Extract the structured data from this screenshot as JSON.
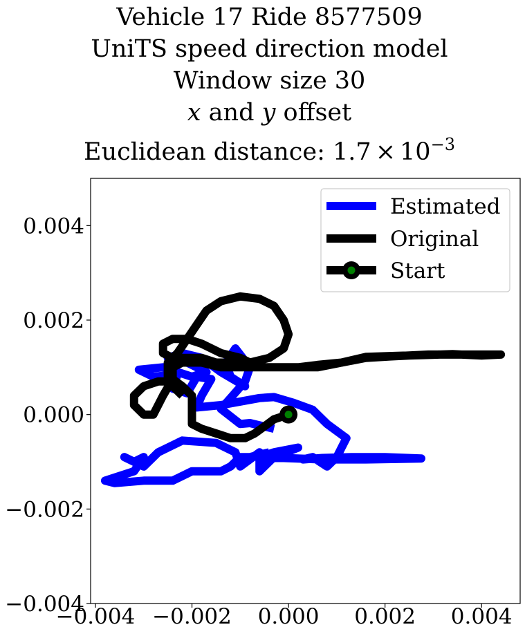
{
  "chart_data": {
    "type": "line",
    "title_lines": [
      "Vehicle 17 Ride 8577509",
      "UniTS speed direction model",
      "Window size 30",
      "x and y offset",
      "Euclidean distance: 1.7×10⁻³"
    ],
    "title": {
      "line1": "Vehicle 17 Ride 8577509",
      "line2": "UniTS speed direction model",
      "line3": "Window size 30",
      "line4_var1": "x",
      "line4_mid": " and ",
      "line4_var2": "y",
      "line4_end": " offset",
      "line5_prefix": "Euclidean distance: 1.7",
      "line5_times": "×",
      "line5_base": "10",
      "line5_exp": "−3"
    },
    "xlim": [
      -0.0041,
      0.0048
    ],
    "ylim": [
      -0.004,
      0.005
    ],
    "xticks": [
      -0.004,
      -0.002,
      0.0,
      0.002,
      0.004
    ],
    "yticks": [
      -0.004,
      -0.002,
      0.0,
      0.002,
      0.004
    ],
    "xtick_labels": [
      "−0.004",
      "−0.002",
      "0.000",
      "0.002",
      "0.004"
    ],
    "ytick_labels": [
      "−0.004",
      "−0.002",
      "0.000",
      "0.002",
      "0.004"
    ],
    "grid": false,
    "legend_placement": "top-right",
    "series": [
      {
        "name": "Estimated",
        "color": "#0000ff",
        "points": [
          [
            -0.0003,
            -0.0003
          ],
          [
            -0.0008,
            -0.00018
          ],
          [
            -0.001,
            -0.0002
          ],
          [
            -0.0014,
            0.00012
          ],
          [
            -0.0012,
            0.00035
          ],
          [
            -0.0009,
            0.0007
          ],
          [
            -0.0008,
            0.001
          ],
          [
            -0.0011,
            0.0014
          ],
          [
            -0.0013,
            0.0011
          ],
          [
            -0.0012,
            0.0008
          ],
          [
            -0.0009,
            0.0006
          ],
          [
            -0.0014,
            0.0009
          ],
          [
            -0.0018,
            0.0012
          ],
          [
            -0.0022,
            0.0013
          ],
          [
            -0.0025,
            0.0012
          ],
          [
            -0.0021,
            0.0011
          ],
          [
            -0.0017,
            0.0009
          ],
          [
            -0.002,
            0.0008
          ],
          [
            -0.0026,
            0.001
          ],
          [
            -0.0031,
            0.00095
          ],
          [
            -0.0028,
            0.0008
          ],
          [
            -0.0023,
            0.00085
          ],
          [
            -0.0024,
            0.00055
          ],
          [
            -0.0021,
            0.00045
          ],
          [
            -0.0019,
            0.0008
          ],
          [
            -0.0016,
            0.00075
          ],
          [
            -0.0018,
            0.0004
          ],
          [
            -0.0019,
            0.00015
          ],
          [
            -0.0014,
            0.0002
          ],
          [
            -0.0006,
            0.00035
          ],
          [
            -0.0003,
            0.00037
          ],
          [
            0.0001,
            0.00025
          ],
          [
            0.0005,
            0.0001
          ],
          [
            0.0008,
            -0.0002
          ],
          [
            0.0012,
            -0.0005
          ],
          [
            0.001,
            -0.0009
          ],
          [
            0.0008,
            -0.0011
          ],
          [
            0.0005,
            -0.0009
          ],
          [
            0.0003,
            -0.00095
          ],
          [
            0.0007,
            -0.00092
          ],
          [
            0.0013,
            -0.0009
          ],
          [
            0.002,
            -0.0009
          ],
          [
            0.00275,
            -0.00093
          ],
          [
            0.0016,
            -0.00095
          ],
          [
            0.0007,
            -0.00095
          ],
          [
            -0.0001,
            -0.00092
          ],
          [
            -0.0006,
            -0.0009
          ],
          [
            -0.0003,
            -0.0008
          ],
          [
            0.0002,
            -0.0007
          ],
          [
            -0.0003,
            -0.0009
          ],
          [
            -0.0006,
            -0.0012
          ],
          [
            -0.0006,
            -0.0008
          ],
          [
            -0.001,
            -0.0011
          ],
          [
            -0.0011,
            -0.0008
          ],
          [
            -0.0015,
            -0.0006
          ],
          [
            -0.0022,
            -0.00055
          ],
          [
            -0.0027,
            -0.0008
          ],
          [
            -0.003,
            -0.0011
          ],
          [
            -0.0034,
            -0.0009
          ],
          [
            -0.0032,
            -0.001
          ],
          [
            -0.003,
            -0.0009
          ],
          [
            -0.0032,
            -0.0012
          ],
          [
            -0.0038,
            -0.0014
          ],
          [
            -0.0036,
            -0.00145
          ],
          [
            -0.003,
            -0.0014
          ],
          [
            -0.0024,
            -0.0014
          ],
          [
            -0.002,
            -0.0012
          ],
          [
            -0.0014,
            -0.0012
          ],
          [
            -0.0012,
            -0.0011
          ],
          [
            -0.001,
            -0.0009
          ],
          [
            -0.0008,
            -0.0009
          ],
          [
            -0.0004,
            -0.0008
          ]
        ]
      },
      {
        "name": "Original",
        "color": "#000000",
        "points": [
          [
            0.0,
            0.0
          ],
          [
            -0.0003,
            -0.0001
          ],
          [
            -0.0005,
            -0.00025
          ],
          [
            -0.0007,
            -0.0004
          ],
          [
            -0.0009,
            -0.0005
          ],
          [
            -0.0012,
            -0.0005
          ],
          [
            -0.0015,
            -0.0004
          ],
          [
            -0.0018,
            -0.0003
          ],
          [
            -0.002,
            -0.0002
          ],
          [
            -0.002,
            0.0001
          ],
          [
            -0.002,
            0.0004
          ],
          [
            -0.0022,
            0.0006
          ],
          [
            -0.0024,
            0.00075
          ],
          [
            -0.0026,
            0.0004
          ],
          [
            -0.0028,
            0.0
          ],
          [
            -0.003,
            0.0
          ],
          [
            -0.0032,
            0.0002
          ],
          [
            -0.0032,
            0.0004
          ],
          [
            -0.003,
            0.0006
          ],
          [
            -0.0027,
            0.0007
          ],
          [
            -0.0024,
            0.0007
          ],
          [
            -0.0024,
            0.001
          ],
          [
            -0.0022,
            0.0011
          ],
          [
            -0.0018,
            0.0011
          ],
          [
            -0.0014,
            0.001
          ],
          [
            -0.001,
            0.001
          ],
          [
            -0.0006,
            0.001
          ],
          [
            -0.0002,
            0.001
          ],
          [
            0.0002,
            0.001
          ],
          [
            0.0006,
            0.00105
          ],
          [
            0.0011,
            0.0011
          ],
          [
            0.0016,
            0.0012
          ],
          [
            0.0021,
            0.00123
          ],
          [
            0.0029,
            0.00127
          ],
          [
            0.0035,
            0.00127
          ],
          [
            0.0044,
            0.00127
          ],
          [
            0.004,
            0.00125
          ],
          [
            0.0034,
            0.00128
          ],
          [
            0.0028,
            0.00126
          ],
          [
            0.0022,
            0.00124
          ],
          [
            0.0016,
            0.00122
          ],
          [
            0.0011,
            0.0011
          ],
          [
            0.0006,
            0.001
          ],
          [
            0.0001,
            0.001
          ],
          [
            -0.0003,
            0.001
          ],
          [
            -0.0006,
            0.001
          ],
          [
            -0.0008,
            0.0011
          ],
          [
            -0.001,
            0.0012
          ],
          [
            -0.0014,
            0.0013
          ],
          [
            -0.0018,
            0.0015
          ],
          [
            -0.0021,
            0.0016
          ],
          [
            -0.0024,
            0.0016
          ],
          [
            -0.0026,
            0.0015
          ],
          [
            -0.0026,
            0.0013
          ],
          [
            -0.0024,
            0.0012
          ],
          [
            -0.0021,
            0.0012
          ],
          [
            -0.0018,
            0.0012
          ],
          [
            -0.0015,
            0.0011
          ],
          [
            -0.0012,
            0.0011
          ],
          [
            -0.0008,
            0.0011
          ],
          [
            -0.0004,
            0.0012
          ],
          [
            -0.0001,
            0.0014
          ],
          [
            0.0,
            0.0017
          ],
          [
            -0.0001,
            0.002
          ],
          [
            -0.0003,
            0.0023
          ],
          [
            -0.0006,
            0.00245
          ],
          [
            -0.001,
            0.0025
          ],
          [
            -0.0014,
            0.0024
          ],
          [
            -0.0017,
            0.0022
          ],
          [
            -0.0019,
            0.0019
          ],
          [
            -0.0021,
            0.0016
          ],
          [
            -0.0023,
            0.0013
          ],
          [
            -0.0025,
            0.0011
          ],
          [
            -0.0025,
            0.0008
          ],
          [
            -0.0024,
            0.0006
          ],
          [
            -0.0022,
            0.0004
          ]
        ]
      }
    ],
    "start": {
      "name": "Start",
      "x": 0.0,
      "y": 0.0,
      "color": "#008000",
      "edge_color": "#000000"
    }
  }
}
